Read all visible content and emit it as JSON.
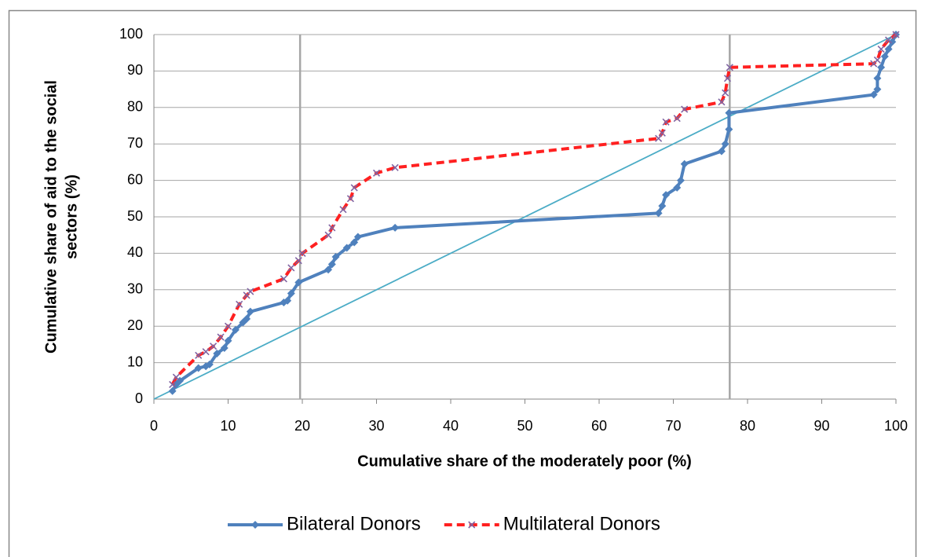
{
  "chart_data": {
    "type": "line",
    "xlabel": "Cumulative share of the  moderately poor (%)",
    "ylabel": [
      "Cumulative share of aid to the social",
      "sectors (%)"
    ],
    "xlim": [
      0,
      100
    ],
    "xticks": [
      0,
      10,
      20,
      30,
      40,
      50,
      60,
      70,
      80,
      90,
      100
    ],
    "ylim": [
      0,
      100
    ],
    "yticks": [
      0,
      10,
      20,
      30,
      40,
      50,
      60,
      70,
      80,
      90,
      100
    ],
    "grid": true,
    "legend": "bottom",
    "reference_lines": {
      "x": [
        19.7,
        77.6
      ],
      "color": "#a6a6a6"
    },
    "equality_line": {
      "x": [
        0,
        100
      ],
      "values": [
        0,
        100
      ],
      "color": "#4bacc6"
    },
    "series": [
      {
        "name": "Bilateral Donors",
        "color": "#4f81bd",
        "marker": "diamond",
        "dashed": false,
        "x": [
          2.5,
          3,
          3.5,
          6,
          7,
          7.5,
          8.5,
          9.5,
          10,
          11,
          12,
          12.5,
          13,
          17.5,
          18,
          18.5,
          19.5,
          23.5,
          24,
          24.5,
          26,
          27,
          27.5,
          32.5,
          68,
          68.5,
          69,
          70.5,
          71,
          71.5,
          76.5,
          77,
          77.5,
          77.5,
          97,
          97.5,
          97.5,
          98,
          98.5,
          99,
          99.5,
          100
        ],
        "values": [
          2.2,
          4,
          5,
          8.5,
          9,
          9.5,
          12.5,
          14,
          16,
          19,
          21,
          22,
          24,
          26.5,
          27,
          29,
          32,
          35.5,
          37,
          39,
          41.5,
          43,
          44.5,
          47,
          51,
          53,
          56,
          58,
          60,
          64.5,
          68,
          70,
          74,
          78.5,
          83.5,
          85,
          88,
          91,
          94,
          96,
          98,
          100
        ]
      },
      {
        "name": "Multilateral Donors",
        "color": "#ff2020",
        "marker_color": "#8064a2",
        "marker": "x",
        "dashed": true,
        "x": [
          2.5,
          3,
          6,
          7,
          8,
          9,
          10,
          11.5,
          12.5,
          13,
          17.5,
          18.5,
          19.5,
          20,
          23.5,
          24,
          25.5,
          26.5,
          27,
          30,
          32.5,
          68,
          68.5,
          69,
          70.5,
          71.5,
          76.5,
          77,
          77.3,
          77.6,
          97,
          97.5,
          98,
          99,
          100
        ],
        "values": [
          4,
          6,
          12,
          13,
          14.5,
          17,
          20,
          26,
          28.5,
          29.5,
          33,
          36,
          38,
          40,
          45,
          47,
          52,
          55,
          58,
          62,
          63.5,
          71.5,
          73,
          76,
          77,
          79.5,
          81.5,
          84,
          88,
          91,
          92,
          93,
          96,
          98.5,
          100
        ]
      }
    ]
  }
}
